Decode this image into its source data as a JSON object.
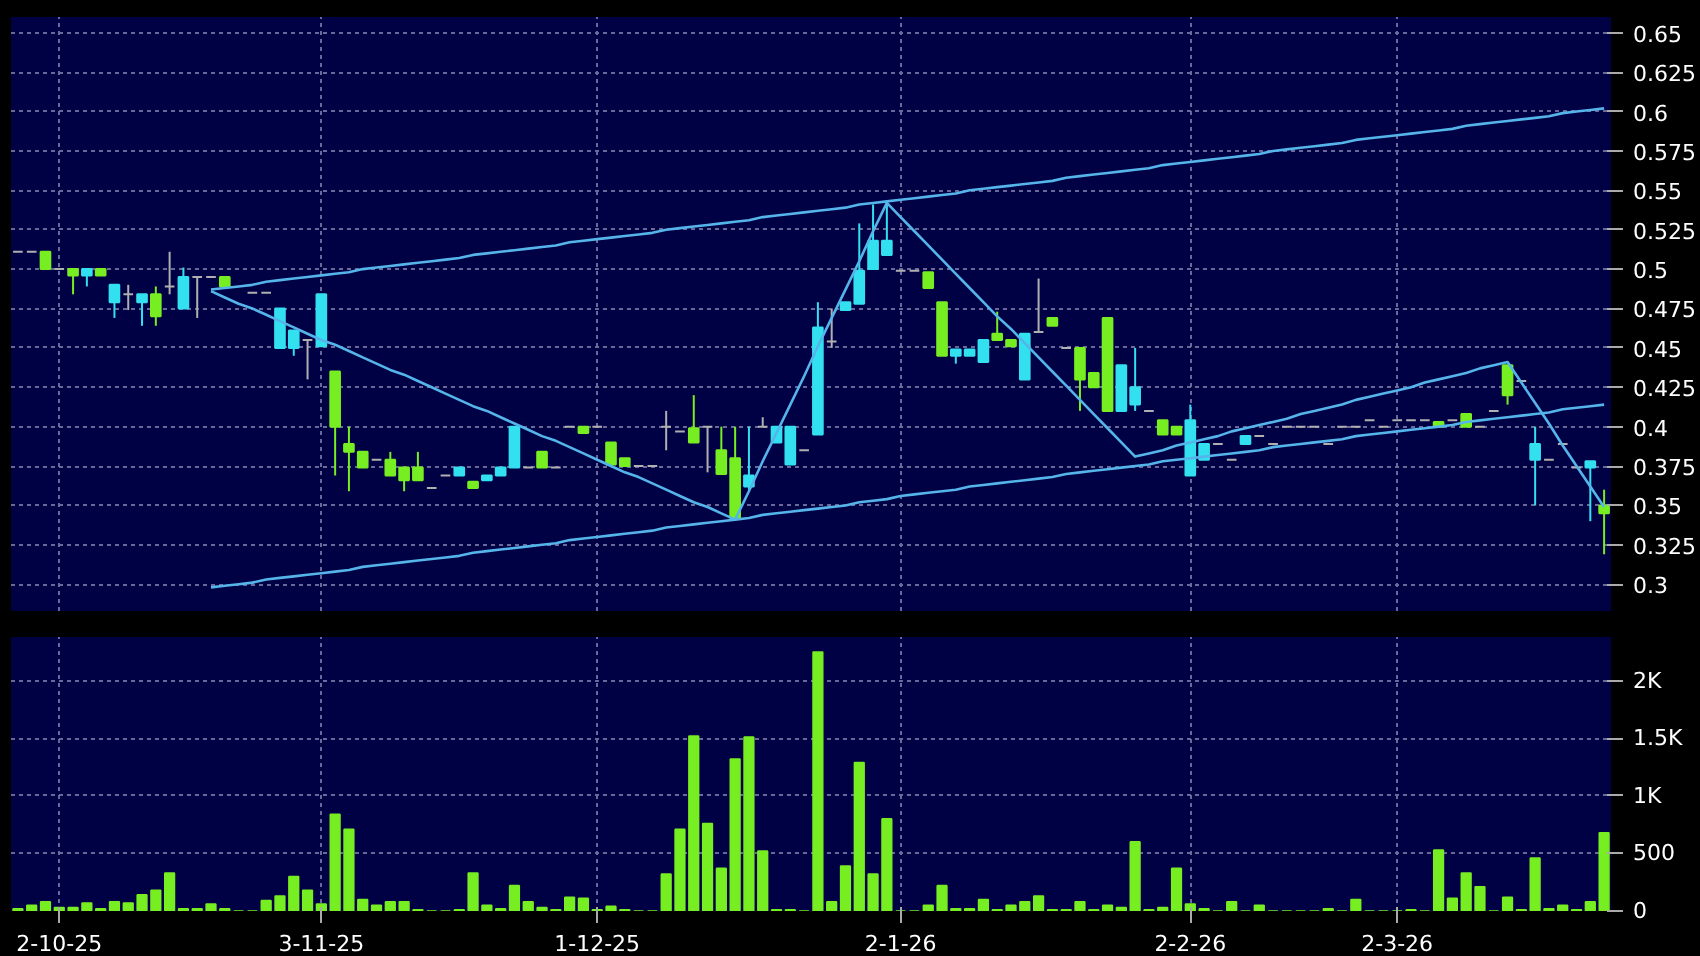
{
  "chart_data": [
    {
      "type": "candlestick",
      "categories": [
        null,
        null,
        null,
        null,
        null,
        null,
        null,
        null,
        null,
        null,
        null,
        null,
        null,
        null,
        null,
        null,
        null,
        null,
        null,
        null,
        null,
        null,
        null,
        null,
        null,
        null,
        null,
        null,
        null,
        null,
        null,
        null,
        null,
        null,
        null,
        null,
        null,
        null,
        null,
        null,
        null,
        null,
        null,
        null,
        null,
        null,
        null,
        null,
        null,
        null,
        null,
        null,
        null,
        null,
        null,
        null,
        null,
        null,
        null,
        null,
        null,
        null,
        null,
        null,
        null,
        null,
        null,
        null,
        null,
        null,
        null,
        null,
        null,
        null,
        null,
        null,
        null,
        null,
        null,
        null,
        null,
        null,
        null,
        null,
        null,
        null,
        null,
        null,
        null,
        null,
        null,
        null,
        null,
        null,
        null,
        null,
        null,
        null,
        null,
        null,
        null,
        null,
        null,
        null,
        null,
        null,
        null,
        null,
        null,
        null,
        null,
        null,
        null,
        null,
        null,
        null
      ],
      "ohlc": [
        [
          0.511,
          0.511,
          0.511,
          0.511
        ],
        [
          0.511,
          0.511,
          0.511,
          0.511
        ],
        [
          0.511,
          0.511,
          0.5,
          0.5
        ],
        [
          0.5,
          0.5,
          0.5,
          0.5
        ],
        [
          0.5,
          0.5,
          0.484,
          0.496
        ],
        [
          0.496,
          0.5,
          0.489,
          0.5
        ],
        [
          0.5,
          0.5,
          0.496,
          0.496
        ],
        [
          0.479,
          0.49,
          0.469,
          0.49
        ],
        [
          0.484,
          0.49,
          0.474,
          0.484
        ],
        [
          0.479,
          0.484,
          0.464,
          0.484
        ],
        [
          0.484,
          0.489,
          0.464,
          0.47
        ],
        [
          0.489,
          0.511,
          0.484,
          0.489
        ],
        [
          0.475,
          0.501,
          0.475,
          0.495
        ],
        [
          0.495,
          0.495,
          0.469,
          0.495
        ],
        [
          0.495,
          0.495,
          0.495,
          0.495
        ],
        [
          0.495,
          0.495,
          0.489,
          0.489
        ],
        null,
        [
          0.485,
          0.485,
          0.485,
          0.485
        ],
        [
          0.485,
          0.485,
          0.485,
          0.485
        ],
        [
          0.45,
          0.475,
          0.45,
          0.475
        ],
        [
          0.45,
          0.461,
          0.445,
          0.461
        ],
        [
          0.455,
          0.455,
          0.43,
          0.455
        ],
        [
          0.451,
          0.484,
          0.451,
          0.484
        ],
        [
          0.435,
          0.435,
          0.369,
          0.4
        ],
        [
          0.389,
          0.4,
          0.359,
          0.384
        ],
        [
          0.384,
          0.384,
          0.374,
          0.374
        ],
        [
          0.379,
          0.379,
          0.379,
          0.379
        ],
        [
          0.379,
          0.384,
          0.369,
          0.369
        ],
        [
          0.374,
          0.374,
          0.359,
          0.366
        ],
        [
          0.374,
          0.384,
          0.366,
          0.366
        ],
        [
          0.361,
          0.361,
          0.361,
          0.361
        ],
        [
          0.369,
          0.369,
          0.369,
          0.369
        ],
        [
          0.369,
          0.374,
          0.369,
          0.374
        ],
        [
          0.365,
          0.365,
          0.361,
          0.361
        ],
        [
          0.366,
          0.369,
          0.366,
          0.369
        ],
        [
          0.369,
          0.374,
          0.369,
          0.374
        ],
        [
          0.374,
          0.4,
          0.374,
          0.4
        ],
        [
          0.374,
          0.374,
          0.374,
          0.374
        ],
        [
          0.384,
          0.384,
          0.374,
          0.374
        ],
        [
          0.374,
          0.374,
          0.374,
          0.374
        ],
        [
          0.4,
          0.4,
          0.4,
          0.4
        ],
        [
          0.4,
          0.4,
          0.396,
          0.396
        ],
        [
          0.4,
          0.4,
          0.4,
          0.4
        ],
        [
          0.39,
          0.39,
          0.376,
          0.376
        ],
        [
          0.38,
          0.38,
          0.375,
          0.375
        ],
        [
          0.375,
          0.375,
          0.375,
          0.375
        ],
        [
          0.375,
          0.375,
          0.375,
          0.375
        ],
        [
          0.4,
          0.41,
          0.385,
          0.4
        ],
        [
          0.397,
          0.397,
          0.397,
          0.397
        ],
        [
          0.399,
          0.42,
          0.39,
          0.39
        ],
        [
          0.4,
          0.4,
          0.371,
          0.4
        ],
        [
          0.385,
          0.4,
          0.37,
          0.37
        ],
        [
          0.38,
          0.4,
          0.342,
          0.342
        ],
        [
          0.362,
          0.4,
          0.36,
          0.369
        ],
        [
          0.4,
          0.406,
          0.4,
          0.4
        ],
        [
          0.39,
          0.4,
          0.39,
          0.4
        ],
        [
          0.376,
          0.4,
          0.376,
          0.4
        ],
        [
          0.385,
          0.385,
          0.385,
          0.385
        ],
        [
          0.395,
          0.479,
          0.395,
          0.463
        ],
        [
          0.454,
          0.475,
          0.45,
          0.454
        ],
        [
          0.474,
          0.479,
          0.474,
          0.479
        ],
        [
          0.478,
          0.529,
          0.478,
          0.499
        ],
        [
          0.5,
          0.541,
          0.5,
          0.518
        ],
        [
          0.509,
          0.541,
          0.509,
          0.518
        ],
        [
          0.499,
          0.499,
          0.499,
          0.499
        ],
        [
          0.499,
          0.499,
          0.499,
          0.499
        ],
        [
          0.498,
          0.498,
          0.488,
          0.488
        ],
        [
          0.479,
          0.479,
          0.445,
          0.445
        ],
        [
          0.445,
          0.449,
          0.44,
          0.449
        ],
        [
          0.445,
          0.449,
          0.445,
          0.449
        ],
        [
          0.441,
          0.455,
          0.441,
          0.455
        ],
        [
          0.459,
          0.473,
          0.455,
          0.455
        ],
        [
          0.455,
          0.455,
          0.451,
          0.451
        ],
        [
          0.43,
          0.459,
          0.43,
          0.459
        ],
        [
          0.46,
          0.494,
          0.46,
          0.46
        ],
        [
          0.469,
          0.469,
          0.464,
          0.464
        ],
        [
          0.45,
          0.45,
          0.45,
          0.45
        ],
        [
          0.45,
          0.45,
          0.41,
          0.43
        ],
        [
          0.434,
          0.434,
          0.425,
          0.425
        ],
        [
          0.469,
          0.469,
          0.41,
          0.41
        ],
        [
          0.41,
          0.439,
          0.41,
          0.439
        ],
        [
          0.414,
          0.45,
          0.41,
          0.425
        ],
        [
          0.41,
          0.41,
          0.41,
          0.41
        ],
        [
          0.404,
          0.404,
          0.395,
          0.395
        ],
        [
          0.4,
          0.4,
          0.395,
          0.395
        ],
        [
          0.369,
          0.414,
          0.369,
          0.404
        ],
        [
          0.379,
          0.389,
          0.379,
          0.389
        ],
        [
          0.389,
          0.389,
          0.389,
          0.389
        ],
        [
          0.379,
          0.379,
          0.379,
          0.379
        ],
        [
          0.389,
          0.394,
          0.389,
          0.394
        ],
        [
          0.394,
          0.394,
          0.394,
          0.394
        ],
        [
          0.389,
          0.389,
          0.389,
          0.389
        ],
        [
          0.4,
          0.4,
          0.4,
          0.4
        ],
        [
          0.4,
          0.4,
          0.4,
          0.4
        ],
        [
          0.4,
          0.4,
          0.4,
          0.4
        ],
        [
          0.389,
          0.389,
          0.389,
          0.389
        ],
        [
          0.4,
          0.4,
          0.4,
          0.4
        ],
        [
          0.4,
          0.4,
          0.4,
          0.4
        ],
        [
          0.404,
          0.404,
          0.404,
          0.404
        ],
        [
          0.4,
          0.4,
          0.4,
          0.4
        ],
        [
          0.404,
          0.404,
          0.404,
          0.404
        ],
        [
          0.404,
          0.404,
          0.404,
          0.404
        ],
        [
          0.404,
          0.404,
          0.404,
          0.404
        ],
        [
          0.403,
          0.403,
          0.4,
          0.4
        ],
        [
          0.404,
          0.404,
          0.404,
          0.404
        ],
        [
          0.408,
          0.408,
          0.4,
          0.4
        ],
        [
          0.4,
          0.4,
          0.4,
          0.4
        ],
        [
          0.41,
          0.41,
          0.41,
          0.41
        ],
        [
          0.439,
          0.439,
          0.414,
          0.42
        ],
        [
          0.429,
          0.429,
          0.429,
          0.429
        ],
        [
          0.379,
          0.4,
          0.35,
          0.389
        ],
        [
          0.379,
          0.379,
          0.379,
          0.379
        ],
        [
          0.389,
          0.389,
          0.389,
          0.389
        ],
        [
          0.374,
          0.374,
          0.374,
          0.374
        ],
        [
          0.374,
          0.378,
          0.34,
          0.378
        ],
        [
          0.35,
          0.36,
          0.319,
          0.345
        ]
      ],
      "colors": [
        "#b0b0b0",
        "#b0b0b0",
        "#77ee22",
        "#b0b0b0",
        "#77ee22",
        "#33e0f0",
        "#77ee22",
        "#33e0f0",
        "#b0b0b0",
        "#33e0f0",
        "#77ee22",
        "#b0b0b0",
        "#33e0f0",
        "#b0b0b0",
        "#b0b0b0",
        "#77ee22",
        "#b0b0b0",
        "#b0b0b0",
        "#b0b0b0",
        "#33e0f0",
        "#33e0f0",
        "#b0b0b0",
        "#33e0f0",
        "#77ee22",
        "#77ee22",
        "#77ee22",
        "#b0b0b0",
        "#77ee22",
        "#77ee22",
        "#77ee22",
        "#b0b0b0",
        "#b0b0b0",
        "#33e0f0",
        "#77ee22",
        "#33e0f0",
        "#33e0f0",
        "#33e0f0",
        "#b0b0b0",
        "#77ee22",
        "#b0b0b0",
        "#b0b0b0",
        "#77ee22",
        "#b0b0b0",
        "#77ee22",
        "#77ee22",
        "#b0b0b0",
        "#b0b0b0",
        "#b0b0b0",
        "#b0b0b0",
        "#77ee22",
        "#b0b0b0",
        "#77ee22",
        "#77ee22",
        "#33e0f0",
        "#b0b0b0",
        "#33e0f0",
        "#33e0f0",
        "#b0b0b0",
        "#33e0f0",
        "#b0b0b0",
        "#33e0f0",
        "#33e0f0",
        "#33e0f0",
        "#33e0f0",
        "#b0b0b0",
        "#b0b0b0",
        "#77ee22",
        "#77ee22",
        "#33e0f0",
        "#33e0f0",
        "#33e0f0",
        "#77ee22",
        "#77ee22",
        "#33e0f0",
        "#b0b0b0",
        "#77ee22",
        "#b0b0b0",
        "#77ee22",
        "#77ee22",
        "#77ee22",
        "#33e0f0",
        "#33e0f0",
        "#b0b0b0",
        "#77ee22",
        "#77ee22",
        "#33e0f0",
        "#33e0f0",
        "#b0b0b0",
        "#b0b0b0",
        "#33e0f0",
        "#b0b0b0",
        "#b0b0b0",
        "#b0b0b0",
        "#b0b0b0",
        "#b0b0b0",
        "#b0b0b0",
        "#b0b0b0",
        "#b0b0b0",
        "#b0b0b0",
        "#b0b0b0",
        "#b0b0b0",
        "#b0b0b0",
        "#b0b0b0",
        "#77ee22",
        "#b0b0b0",
        "#77ee22",
        "#b0b0b0",
        "#b0b0b0",
        "#77ee22",
        "#b0b0b0",
        "#33e0f0",
        "#b0b0b0",
        "#b0b0b0",
        "#b0b0b0",
        "#33e0f0",
        "#77ee22"
      ],
      "series": [
        {
          "type": "line",
          "color": "#55b4ea",
          "values": [
            null,
            null,
            null,
            null,
            null,
            null,
            null,
            null,
            null,
            null,
            null,
            null,
            null,
            null,
            0.487,
            0.488,
            0.489,
            0.49,
            0.492,
            0.493,
            0.494,
            0.495,
            0.496,
            0.497,
            0.498,
            0.5,
            0.501,
            0.502,
            0.503,
            0.504,
            0.505,
            0.506,
            0.507,
            0.509,
            0.51,
            0.511,
            0.512,
            0.513,
            0.514,
            0.515,
            0.517,
            0.518,
            0.519,
            0.52,
            0.521,
            0.522,
            0.523,
            0.525,
            0.526,
            0.527,
            0.528,
            0.529,
            0.53,
            0.531,
            0.533,
            0.534,
            0.535,
            0.536,
            0.537,
            0.538,
            0.539,
            0.541,
            0.542,
            0.543,
            0.544,
            0.545,
            0.546,
            0.547,
            0.548,
            0.55,
            0.551,
            0.552,
            0.553,
            0.554,
            0.555,
            0.556,
            0.558,
            0.559,
            0.56,
            0.561,
            0.562,
            0.563,
            0.564,
            0.566,
            0.567,
            0.568,
            0.569,
            0.57,
            0.571,
            0.572,
            0.573,
            0.575,
            0.576,
            0.577,
            0.578,
            0.579,
            0.58,
            0.582,
            0.583,
            0.584,
            0.585,
            0.586,
            0.587,
            0.588,
            0.589,
            0.591,
            0.592,
            0.593,
            0.594,
            0.595,
            0.596,
            0.597,
            0.599,
            0.6,
            0.601,
            0.602
          ]
        },
        {
          "type": "line",
          "color": "#55b4ea",
          "values": [
            null,
            null,
            null,
            null,
            null,
            null,
            null,
            null,
            null,
            null,
            null,
            null,
            null,
            null,
            0.298,
            0.299,
            0.3,
            0.301,
            0.303,
            0.304,
            0.305,
            0.306,
            0.307,
            0.308,
            0.309,
            0.311,
            0.312,
            0.313,
            0.314,
            0.315,
            0.316,
            0.317,
            0.318,
            0.32,
            0.321,
            0.322,
            0.323,
            0.324,
            0.325,
            0.326,
            0.328,
            0.329,
            0.33,
            0.331,
            0.332,
            0.333,
            0.334,
            0.336,
            0.337,
            0.338,
            0.339,
            0.34,
            0.341,
            0.342,
            0.344,
            0.345,
            0.346,
            0.347,
            0.348,
            0.349,
            0.35,
            0.352,
            0.353,
            0.354,
            0.356,
            0.357,
            0.358,
            0.359,
            0.36,
            0.362,
            0.363,
            0.364,
            0.365,
            0.366,
            0.367,
            0.368,
            0.37,
            0.371,
            0.372,
            0.373,
            0.374,
            0.375,
            0.376,
            0.378,
            0.379,
            0.38,
            0.381,
            0.382,
            0.383,
            0.384,
            0.385,
            0.387,
            0.388,
            0.389,
            0.39,
            0.391,
            0.392,
            0.394,
            0.395,
            0.396,
            0.397,
            0.398,
            0.399,
            0.4,
            0.401,
            0.403,
            0.404,
            0.405,
            0.406,
            0.407,
            0.408,
            0.409,
            0.411,
            0.412,
            0.413,
            0.414
          ]
        },
        {
          "type": "line",
          "color": "#55b4ea",
          "values": [
            null,
            null,
            null,
            null,
            null,
            null,
            null,
            null,
            null,
            null,
            null,
            null,
            null,
            null,
            0.486,
            0.482,
            0.478,
            0.475,
            0.471,
            0.467,
            0.463,
            0.459,
            0.455,
            0.452,
            0.448,
            0.444,
            0.44,
            0.436,
            0.433,
            0.429,
            0.425,
            0.421,
            0.417,
            0.413,
            0.41,
            0.406,
            0.402,
            0.398,
            0.394,
            0.391,
            0.387,
            0.383,
            0.379,
            0.375,
            0.371,
            0.368,
            0.364,
            0.36,
            0.356,
            0.352,
            0.349,
            0.345,
            0.341,
            0.359,
            0.378,
            0.396,
            0.414,
            0.432,
            0.451,
            0.469,
            0.487,
            0.505,
            0.524,
            0.542,
            0.533,
            0.524,
            0.515,
            0.506,
            0.497,
            0.488,
            0.479,
            0.47,
            0.462,
            0.453,
            0.444,
            0.435,
            0.426,
            0.417,
            0.408,
            0.399,
            0.39,
            0.381,
            0.383,
            0.385,
            0.388,
            0.39,
            0.392,
            0.394,
            0.397,
            0.399,
            0.401,
            0.403,
            0.405,
            0.408,
            0.41,
            0.412,
            0.414,
            0.417,
            0.419,
            0.421,
            0.423,
            0.425,
            0.428,
            0.43,
            0.432,
            0.434,
            0.437,
            0.439,
            0.441,
            0.428,
            0.415,
            0.402,
            0.388,
            0.375,
            0.362,
            0.349
          ]
        }
      ],
      "ylim": [
        0.283,
        0.66
      ],
      "yticks": [
        0.3,
        0.325,
        0.35,
        0.375,
        0.4,
        0.425,
        0.45,
        0.475,
        0.5,
        0.525,
        0.55,
        0.575,
        0.6,
        0.625,
        0.65
      ],
      "tick_labels": "y",
      "grid": true
    },
    {
      "type": "bar",
      "color": "#77ee22",
      "categories": [
        null,
        null,
        null,
        "2-10-25",
        null,
        null,
        null,
        null,
        null,
        null,
        null,
        null,
        null,
        null,
        null,
        null,
        null,
        null,
        null,
        null,
        null,
        null,
        "3-11-25",
        null,
        null,
        null,
        null,
        null,
        null,
        null,
        null,
        null,
        null,
        null,
        null,
        null,
        null,
        null,
        null,
        null,
        null,
        null,
        "1-12-25",
        null,
        null,
        null,
        null,
        null,
        null,
        null,
        null,
        null,
        null,
        null,
        null,
        null,
        null,
        null,
        null,
        null,
        null,
        null,
        null,
        null,
        "2-1-26",
        null,
        null,
        null,
        null,
        null,
        null,
        null,
        null,
        null,
        null,
        null,
        null,
        null,
        null,
        null,
        null,
        null,
        null,
        null,
        null,
        "2-2-26",
        null,
        null,
        null,
        null,
        null,
        null,
        null,
        null,
        null,
        null,
        null,
        null,
        null,
        null,
        "2-3-26",
        null,
        null,
        null,
        null,
        null,
        null,
        null,
        null,
        null,
        null,
        null,
        null,
        null,
        null,
        null
      ],
      "values": [
        20,
        50,
        80,
        30,
        30,
        70,
        20,
        80,
        70,
        140,
        180,
        330,
        20,
        20,
        60,
        20,
        0,
        0,
        90,
        130,
        300,
        180,
        60,
        840,
        710,
        100,
        50,
        80,
        80,
        10,
        0,
        0,
        10,
        330,
        50,
        20,
        220,
        80,
        30,
        10,
        120,
        110,
        10,
        40,
        10,
        0,
        0,
        320,
        710,
        1520,
        760,
        370,
        1320,
        1510,
        520,
        10,
        10,
        0,
        2250,
        80,
        390,
        1290,
        320,
        800,
        0,
        0,
        50,
        220,
        20,
        20,
        100,
        10,
        50,
        80,
        130,
        10,
        10,
        80,
        10,
        50,
        30,
        600,
        10,
        30,
        370,
        60,
        20,
        0,
        80,
        0,
        50,
        0,
        0,
        0,
        0,
        20,
        0,
        100,
        0,
        0,
        0,
        10,
        0,
        530,
        110,
        330,
        210,
        0,
        120,
        10,
        460,
        20,
        50,
        10,
        80,
        680
      ],
      "ylim": [
        0,
        2380
      ],
      "yticks": [
        0,
        500,
        {
          "value": 1000,
          "label": "1K"
        },
        {
          "value": 1500,
          "label": "1.5K"
        },
        {
          "value": 2000,
          "label": "2K"
        }
      ],
      "grid": true
    }
  ]
}
